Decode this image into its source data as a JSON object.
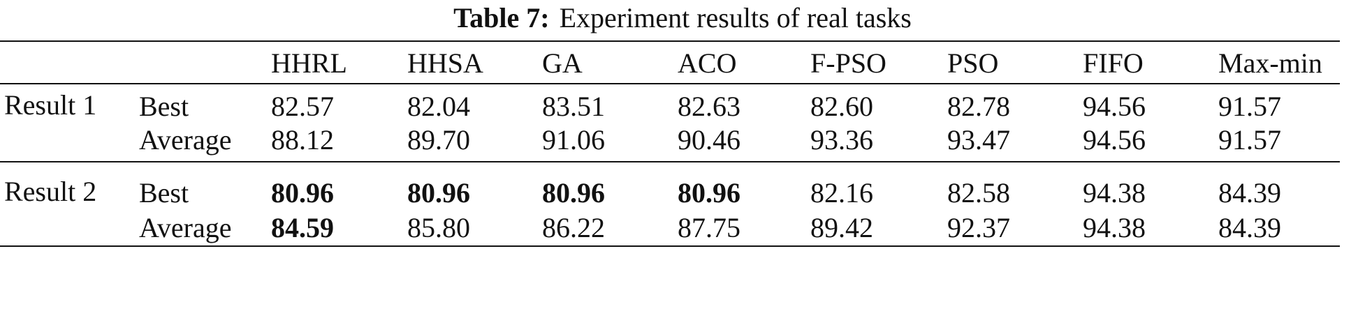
{
  "caption": {
    "label": "Table 7:",
    "text": "Experiment results of real tasks"
  },
  "table": {
    "columns": [
      "HHRL",
      "HHSA",
      "GA",
      "ACO",
      "F-PSO",
      "PSO",
      "FIFO",
      "Max-min"
    ],
    "groups": [
      {
        "name": "Result 1",
        "rows": [
          {
            "metric": "Best",
            "values": [
              "82.57",
              "82.04",
              "83.51",
              "82.63",
              "82.60",
              "82.78",
              "94.56",
              "91.57"
            ],
            "bold": [
              false,
              false,
              false,
              false,
              false,
              false,
              false,
              false
            ]
          },
          {
            "metric": "Average",
            "values": [
              "88.12",
              "89.70",
              "91.06",
              "90.46",
              "93.36",
              "93.47",
              "94.56",
              "91.57"
            ],
            "bold": [
              false,
              false,
              false,
              false,
              false,
              false,
              false,
              false
            ]
          }
        ]
      },
      {
        "name": "Result 2",
        "rows": [
          {
            "metric": "Best",
            "values": [
              "80.96",
              "80.96",
              "80.96",
              "80.96",
              "82.16",
              "82.58",
              "94.38",
              "84.39"
            ],
            "bold": [
              true,
              true,
              true,
              true,
              false,
              false,
              false,
              false
            ]
          },
          {
            "metric": "Average",
            "values": [
              "84.59",
              "85.80",
              "86.22",
              "87.75",
              "89.42",
              "92.37",
              "94.38",
              "84.39"
            ],
            "bold": [
              true,
              false,
              false,
              false,
              false,
              false,
              false,
              false
            ]
          }
        ]
      }
    ]
  }
}
